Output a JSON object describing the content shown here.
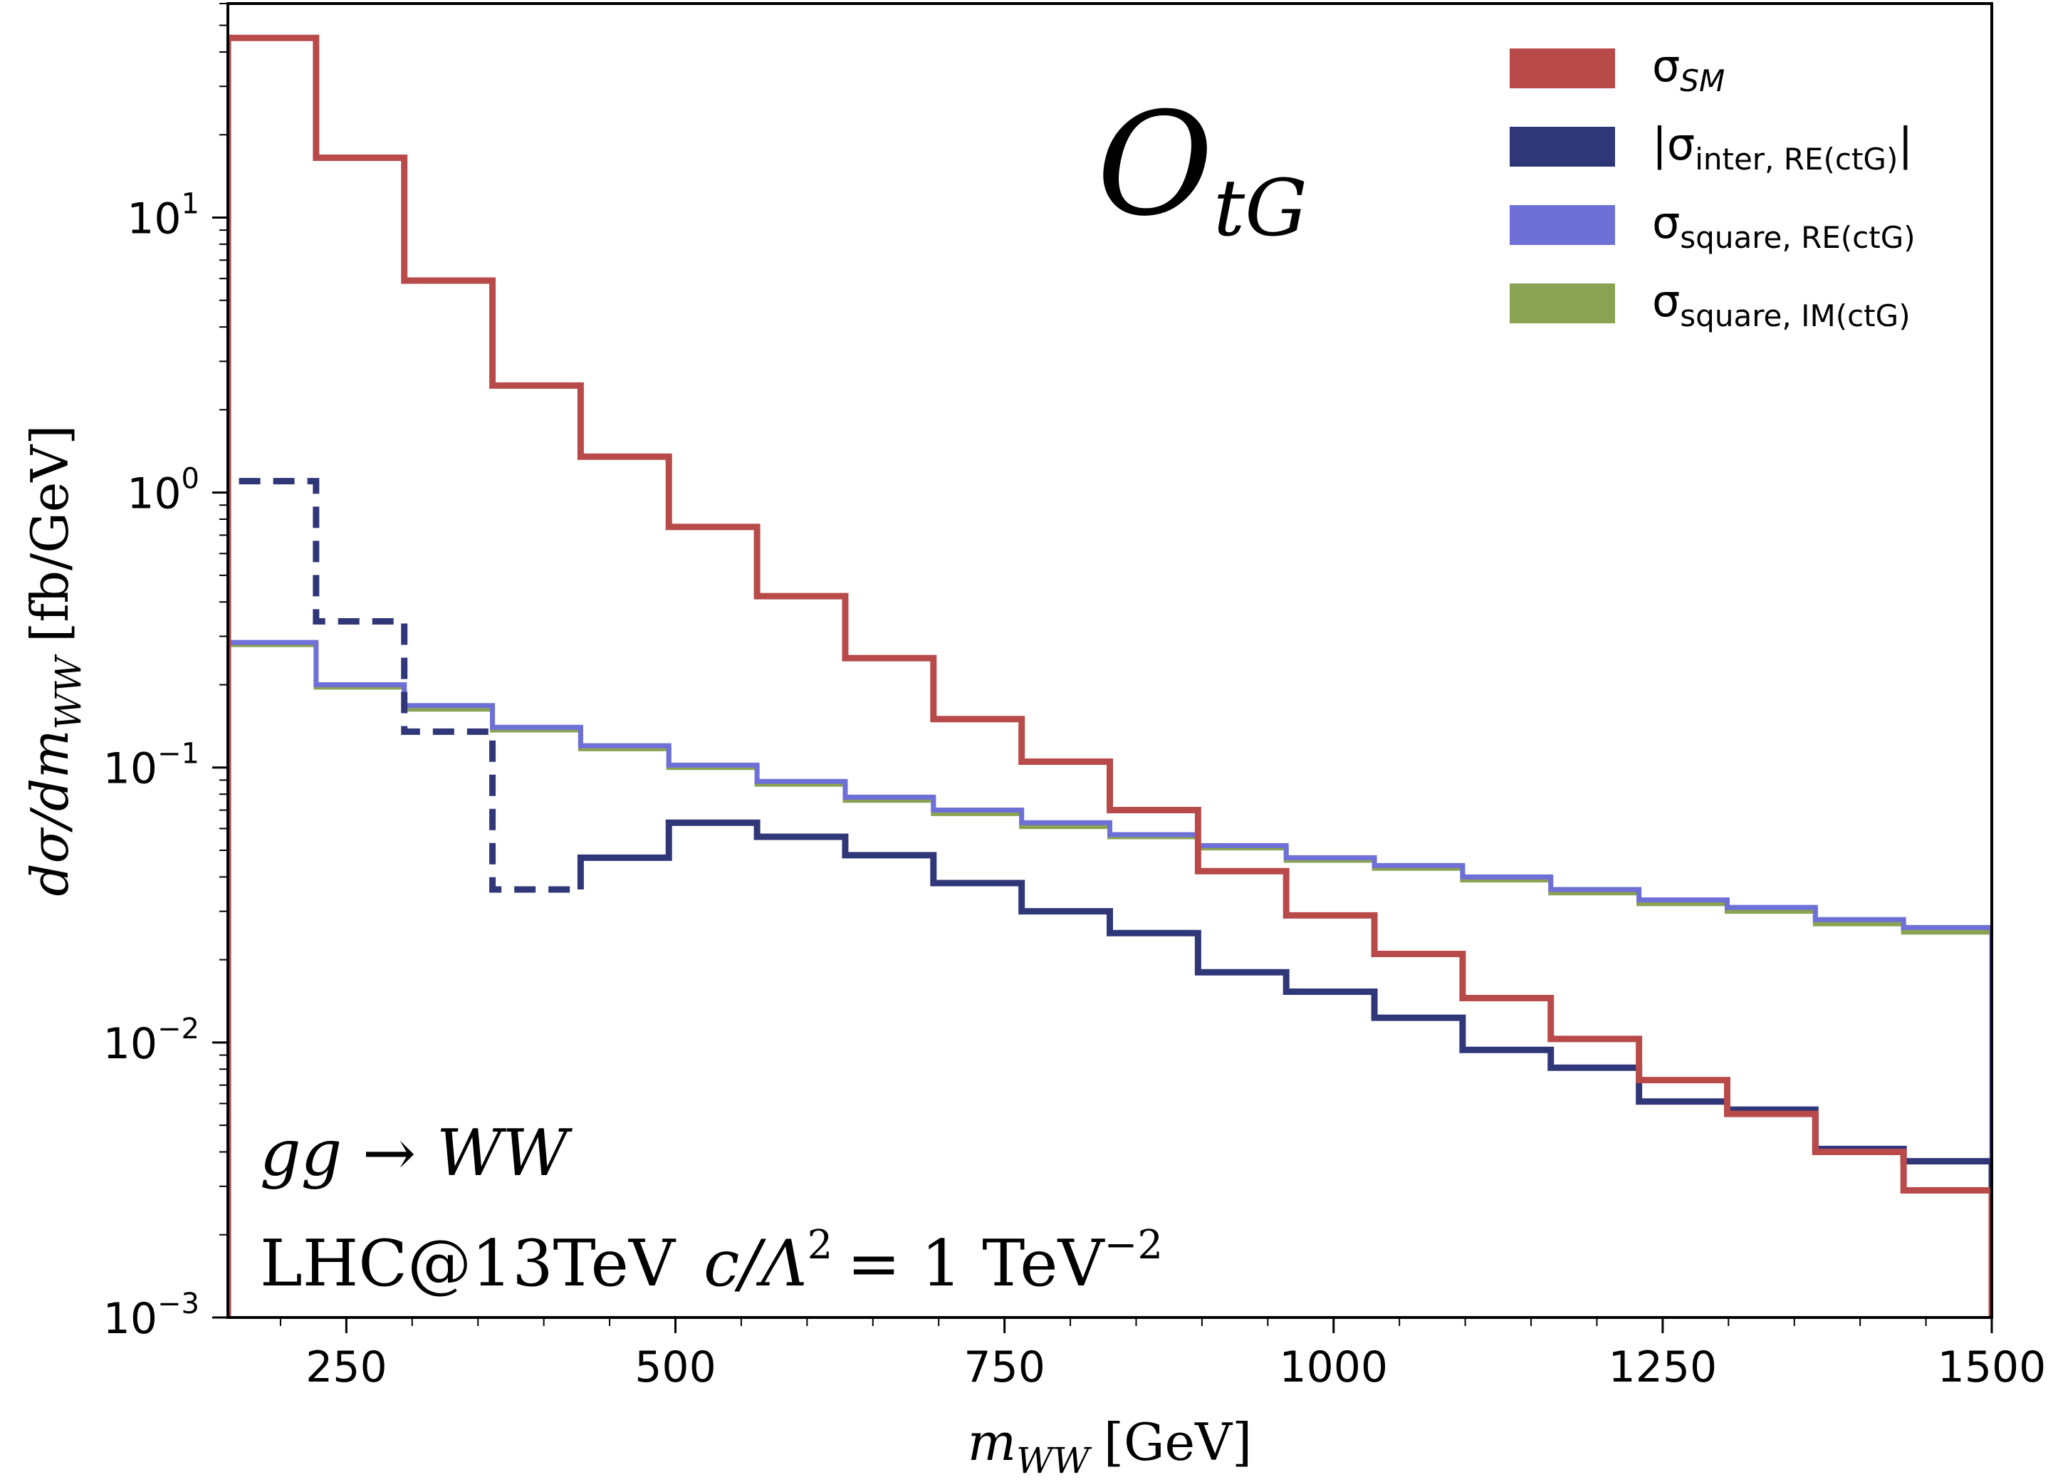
{
  "chart_data": {
    "type": "line",
    "subtype": "step-histogram",
    "x_unit": "GeV",
    "xlabel": "m_WW [GeV]",
    "ylabel": "dσ/dm_WW [fb/GeV]",
    "xlim": [
      160,
      1500
    ],
    "ylim": [
      0.001,
      60
    ],
    "yscale": "log",
    "legend_position": "top-right",
    "x_ticks": [
      250,
      500,
      750,
      1000,
      1250,
      1500
    ],
    "x_tick_labels": [
      "250",
      "500",
      "750",
      "1000",
      "1250",
      "1500"
    ],
    "y_ticks": [
      {
        "value": 10,
        "base": "10",
        "exp": "1"
      },
      {
        "value": 1,
        "base": "10",
        "exp": "0"
      },
      {
        "value": 0.1,
        "base": "10",
        "exp": "−1"
      },
      {
        "value": 0.01,
        "base": "10",
        "exp": "−2"
      },
      {
        "value": 0.001,
        "base": "10",
        "exp": "−3"
      }
    ],
    "bin_edges": [
      160,
      227,
      294,
      361,
      428,
      495,
      562,
      629,
      696,
      763,
      830,
      897,
      964,
      1031,
      1098,
      1165,
      1232,
      1299,
      1366,
      1433,
      1500
    ],
    "series": [
      {
        "name": "σSM",
        "legend_main": "σ",
        "legend_sub": "SM",
        "legend_italic_sub": true,
        "color": "#b94a4a",
        "style": "solid",
        "values": [
          45,
          16.5,
          5.9,
          2.45,
          1.35,
          0.75,
          0.42,
          0.25,
          0.15,
          0.105,
          0.07,
          0.042,
          0.029,
          0.021,
          0.0145,
          0.0103,
          0.0073,
          0.0055,
          0.004,
          0.0029
        ]
      },
      {
        "name": "|σinter, RE(ctG)|",
        "legend_main": "|σ",
        "legend_sub": "inter, RE(ctG)",
        "legend_close": "|",
        "color": "#303778",
        "style": "solid",
        "dashed_until": 428,
        "values": [
          1.1,
          0.34,
          0.135,
          0.036,
          0.047,
          0.063,
          0.056,
          0.048,
          0.038,
          0.03,
          0.025,
          0.018,
          0.0153,
          0.0123,
          0.0094,
          0.0081,
          0.0061,
          0.0057,
          0.0041,
          0.0037
        ]
      },
      {
        "name": "σsquare, RE(ctG)",
        "legend_main": "σ",
        "legend_sub": "square, RE(ctG)",
        "color": "#6e70d8",
        "style": "solid",
        "values": [
          0.285,
          0.2,
          0.168,
          0.14,
          0.12,
          0.102,
          0.089,
          0.078,
          0.07,
          0.063,
          0.057,
          0.052,
          0.047,
          0.044,
          0.04,
          0.036,
          0.033,
          0.031,
          0.028,
          0.0262
        ]
      },
      {
        "name": "σsquare, IM(ctG)",
        "legend_main": "σ",
        "legend_sub": "square, IM(ctG)",
        "color": "#8aa352",
        "style": "solid",
        "values": [
          0.28,
          0.196,
          0.163,
          0.137,
          0.117,
          0.1,
          0.087,
          0.076,
          0.068,
          0.061,
          0.056,
          0.051,
          0.046,
          0.043,
          0.039,
          0.035,
          0.032,
          0.03,
          0.027,
          0.0252
        ]
      }
    ],
    "annotations": {
      "operator_main": "O",
      "operator_sub": "tG",
      "process": "gg → WW",
      "collider": "LHC@13TeV",
      "coupling": "c/Λ",
      "coupling_exp": "2",
      "coupling_rhs": "= 1 TeV",
      "coupling_rhs_exp": "−2"
    },
    "axis_text": {
      "x_main": "m",
      "x_sub": "WW",
      "x_unit": "[GeV]",
      "y_main": "dσ/dm",
      "y_sub": "WW",
      "y_unit": "[fb/GeV]"
    }
  }
}
